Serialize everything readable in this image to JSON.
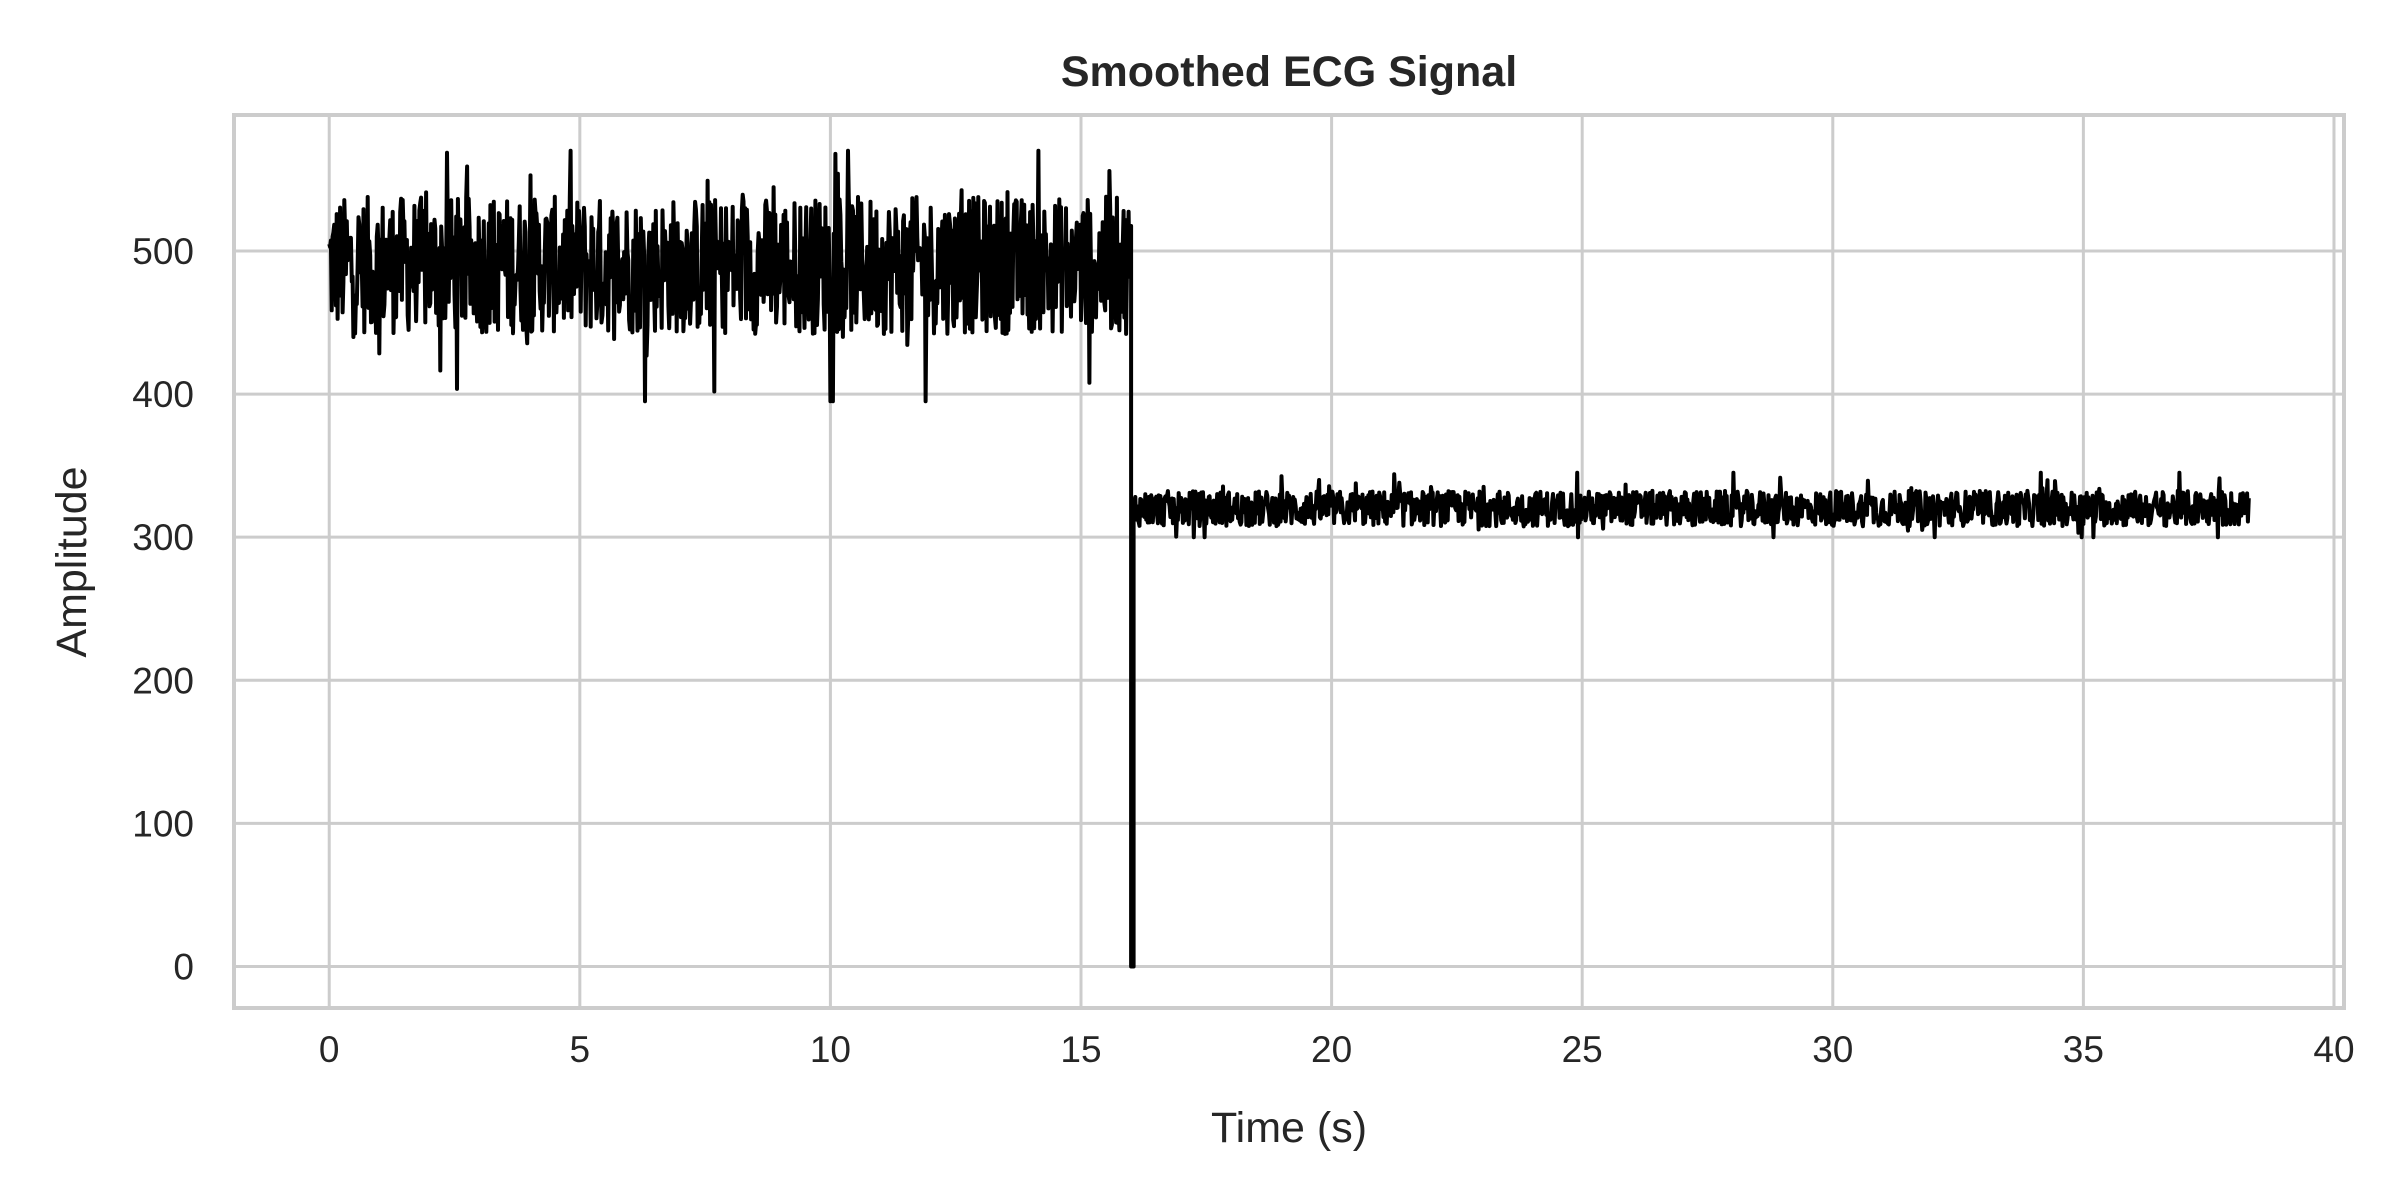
{
  "chart_data": {
    "type": "line",
    "title": "Smoothed ECG Signal",
    "xlabel": "Time (s)",
    "ylabel": "Amplitude",
    "xlim": [
      -1.9,
      40.2
    ],
    "ylim": [
      -29,
      595
    ],
    "xticks": [
      0,
      5,
      10,
      15,
      20,
      25,
      30,
      35,
      40
    ],
    "yticks": [
      0,
      100,
      200,
      300,
      400,
      500
    ],
    "xtick_labels": [
      "0",
      "5",
      "10",
      "15",
      "20",
      "25",
      "30",
      "35",
      "40"
    ],
    "ytick_labels": [
      "0",
      "100",
      "200",
      "300",
      "400",
      "500"
    ],
    "grid": true,
    "line_color": "#000000",
    "series": [
      {
        "segments": [
          {
            "x_start": 0,
            "x_end": 16.0,
            "baseline": 490,
            "range_low": 395,
            "range_high": 570
          },
          {
            "x_start": 16.0,
            "x_end": 16.05,
            "baseline": 0,
            "range_low": 0,
            "range_high": 0
          },
          {
            "x_start": 16.05,
            "x_end": 38.3,
            "baseline": 320,
            "range_low": 300,
            "range_high": 345
          }
        ]
      }
    ]
  }
}
